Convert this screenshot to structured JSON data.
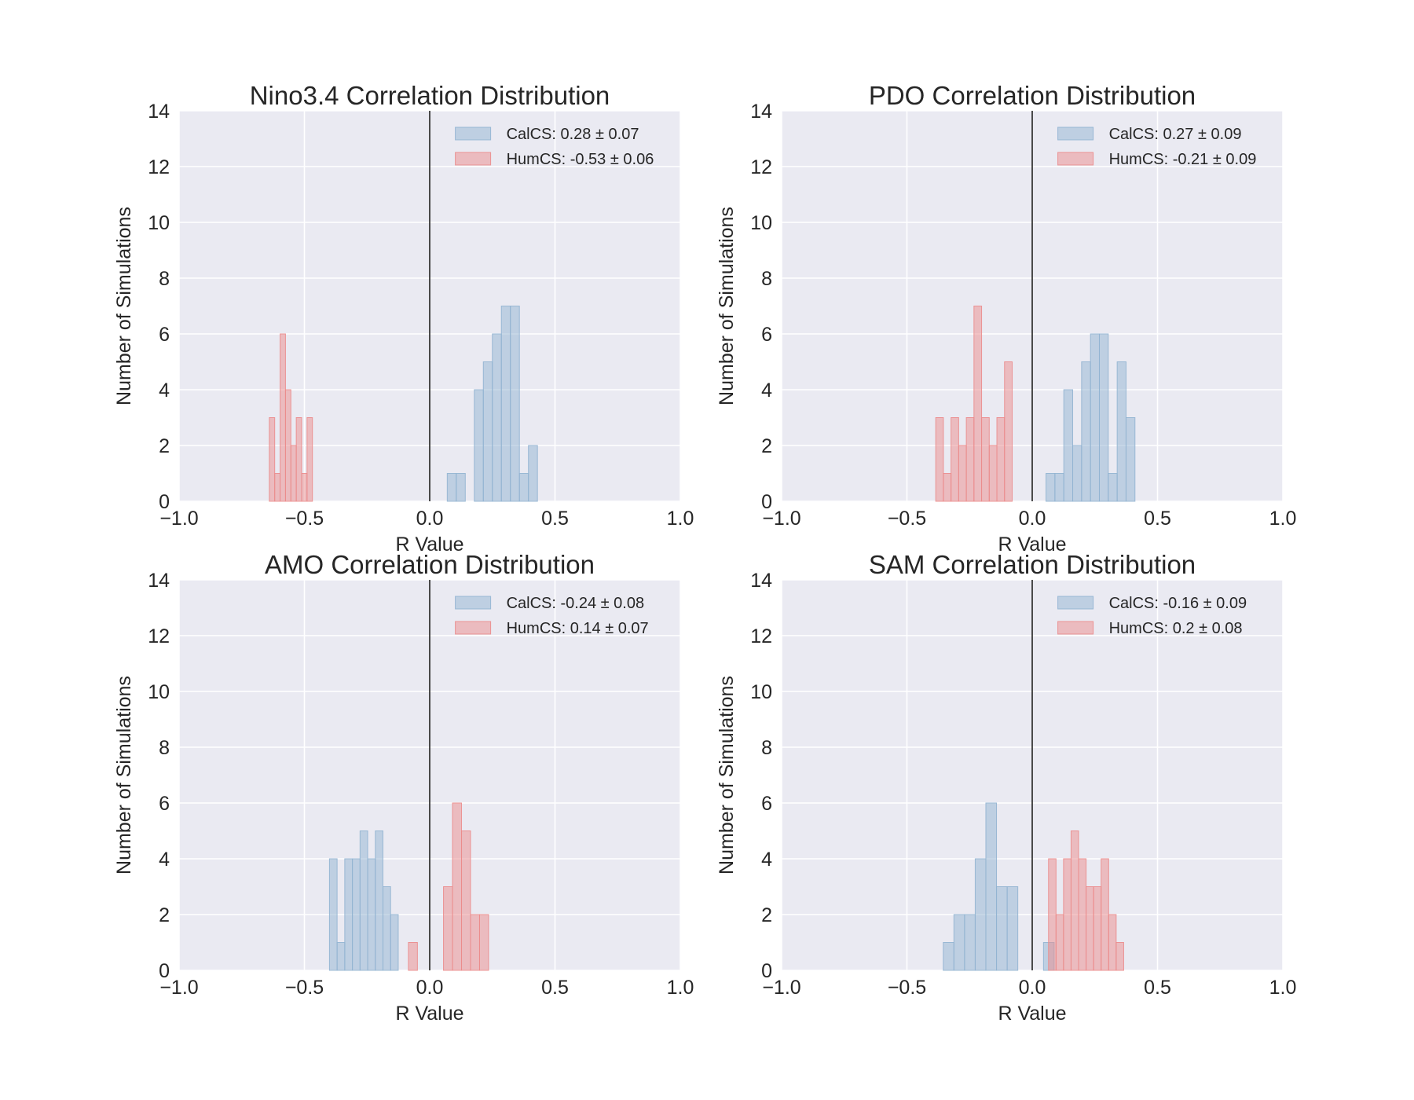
{
  "colors": {
    "calcs": "#92b4d2",
    "humcs": "#eb8c8c",
    "background": "#eaeaf2",
    "grid": "#ffffff"
  },
  "chart_data": [
    {
      "type": "bar",
      "title": "Nino3.4 Correlation Distribution",
      "xlabel": "R Value",
      "ylabel": "Number of Simulations",
      "xlim": [
        -1.0,
        1.0
      ],
      "ylim": [
        0,
        14
      ],
      "xticks": [
        "−1.0",
        "−0.5",
        "0.0",
        "0.5",
        "1.0"
      ],
      "yticks": [
        "0",
        "2",
        "4",
        "6",
        "8",
        "10",
        "12",
        "14"
      ],
      "grid": true,
      "legend_position": "upper right",
      "series": [
        {
          "name": "CalCS: 0.28 ± 0.07",
          "color": "#92b4d2",
          "bin_width": 0.036,
          "bins": [
            [
              0.07,
              1
            ],
            [
              0.106,
              1
            ],
            [
              0.178,
              4
            ],
            [
              0.214,
              5
            ],
            [
              0.25,
              6
            ],
            [
              0.286,
              7
            ],
            [
              0.322,
              7
            ],
            [
              0.358,
              1
            ],
            [
              0.394,
              2
            ]
          ]
        },
        {
          "name": "HumCS: -0.53 ± 0.06",
          "color": "#eb8c8c",
          "bin_width": 0.0215,
          "bins": [
            [
              -0.64,
              3
            ],
            [
              -0.6185,
              1
            ],
            [
              -0.597,
              6
            ],
            [
              -0.5755,
              4
            ],
            [
              -0.554,
              2
            ],
            [
              -0.5325,
              3
            ],
            [
              -0.511,
              1
            ],
            [
              -0.4895,
              3
            ]
          ]
        }
      ]
    },
    {
      "type": "bar",
      "title": "PDO Correlation Distribution",
      "xlabel": "R Value",
      "ylabel": "Number of Simulations",
      "xlim": [
        -1.0,
        1.0
      ],
      "ylim": [
        0,
        14
      ],
      "xticks": [
        "−1.0",
        "−0.5",
        "0.0",
        "0.5",
        "1.0"
      ],
      "yticks": [
        "0",
        "2",
        "4",
        "6",
        "8",
        "10",
        "12",
        "14"
      ],
      "grid": true,
      "legend_position": "upper right",
      "series": [
        {
          "name": "CalCS: 0.27 ± 0.09",
          "color": "#92b4d2",
          "bin_width": 0.0355,
          "bins": [
            [
              0.055,
              1
            ],
            [
              0.0905,
              1
            ],
            [
              0.126,
              4
            ],
            [
              0.1615,
              2
            ],
            [
              0.197,
              5
            ],
            [
              0.2325,
              6
            ],
            [
              0.268,
              6
            ],
            [
              0.3035,
              1
            ],
            [
              0.339,
              5
            ],
            [
              0.3745,
              3
            ]
          ]
        },
        {
          "name": "HumCS: -0.21 ± 0.09",
          "color": "#eb8c8c",
          "bin_width": 0.0305,
          "bins": [
            [
              -0.385,
              3
            ],
            [
              -0.3545,
              1
            ],
            [
              -0.324,
              3
            ],
            [
              -0.2935,
              2
            ],
            [
              -0.263,
              3
            ],
            [
              -0.2325,
              7
            ],
            [
              -0.202,
              3
            ],
            [
              -0.1715,
              2
            ],
            [
              -0.141,
              3
            ],
            [
              -0.1105,
              5
            ]
          ]
        }
      ]
    },
    {
      "type": "bar",
      "title": "AMO Correlation Distribution",
      "xlabel": "R Value",
      "ylabel": "Number of Simulations",
      "xlim": [
        -1.0,
        1.0
      ],
      "ylim": [
        0,
        14
      ],
      "xticks": [
        "−1.0",
        "−0.5",
        "0.0",
        "0.5",
        "1.0"
      ],
      "yticks": [
        "0",
        "2",
        "4",
        "6",
        "8",
        "10",
        "12",
        "14"
      ],
      "grid": true,
      "legend_position": "upper right",
      "series": [
        {
          "name": "CalCS: -0.24 ± 0.08",
          "color": "#92b4d2",
          "bin_width": 0.0305,
          "bins": [
            [
              -0.4,
              4
            ],
            [
              -0.3695,
              1
            ],
            [
              -0.339,
              4
            ],
            [
              -0.3085,
              4
            ],
            [
              -0.278,
              5
            ],
            [
              -0.2475,
              4
            ],
            [
              -0.217,
              5
            ],
            [
              -0.1865,
              3
            ],
            [
              -0.156,
              2
            ]
          ]
        },
        {
          "name": "HumCS: 0.14 ± 0.07",
          "color": "#eb8c8c",
          "bin_width": 0.036,
          "bins": [
            [
              -0.085,
              1
            ],
            [
              0.055,
              3
            ],
            [
              0.091,
              6
            ],
            [
              0.127,
              5
            ],
            [
              0.163,
              2
            ],
            [
              0.199,
              2
            ]
          ]
        }
      ]
    },
    {
      "type": "bar",
      "title": "SAM Correlation Distribution",
      "xlabel": "R Value",
      "ylabel": "Number of Simulations",
      "xlim": [
        -1.0,
        1.0
      ],
      "ylim": [
        0,
        14
      ],
      "xticks": [
        "−1.0",
        "−0.5",
        "0.0",
        "0.5",
        "1.0"
      ],
      "yticks": [
        "0",
        "2",
        "4",
        "6",
        "8",
        "10",
        "12",
        "14"
      ],
      "grid": true,
      "legend_position": "upper right",
      "series": [
        {
          "name": "CalCS: -0.16 ± 0.09",
          "color": "#92b4d2",
          "bin_width": 0.0425,
          "bins": [
            [
              -0.355,
              1
            ],
            [
              -0.3125,
              2
            ],
            [
              -0.27,
              2
            ],
            [
              -0.2275,
              4
            ],
            [
              -0.185,
              6
            ],
            [
              -0.1425,
              3
            ],
            [
              -0.1,
              3
            ],
            [
              0.045,
              1
            ]
          ]
        },
        {
          "name": "HumCS: 0.2 ± 0.08",
          "color": "#eb8c8c",
          "bin_width": 0.03,
          "bins": [
            [
              0.065,
              4
            ],
            [
              0.095,
              2
            ],
            [
              0.125,
              4
            ],
            [
              0.155,
              5
            ],
            [
              0.185,
              4
            ],
            [
              0.215,
              3
            ],
            [
              0.245,
              3
            ],
            [
              0.275,
              4
            ],
            [
              0.305,
              2
            ],
            [
              0.335,
              1
            ]
          ]
        }
      ]
    }
  ]
}
